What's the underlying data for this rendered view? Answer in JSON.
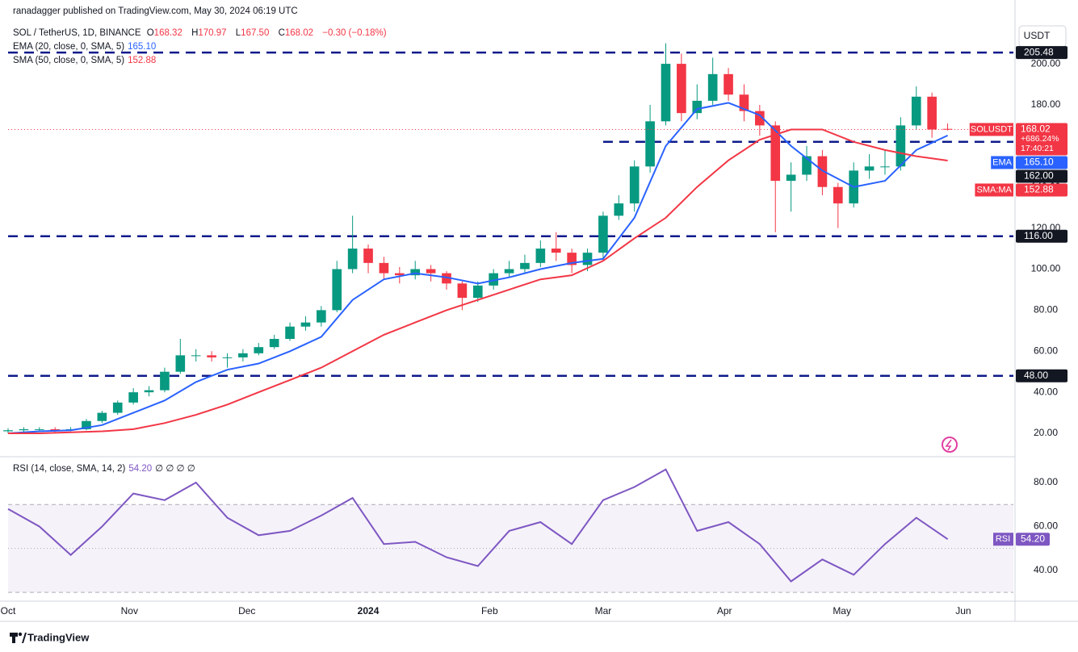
{
  "header": {
    "publisher": "ranadagger published on TradingView.com, May 30, 2024 06:19 UTC",
    "symbol": "SOL / TetherUS, 1D, BINANCE",
    "ohlc": [
      {
        "k": "O",
        "v": "168.32"
      },
      {
        "k": "H",
        "v": "170.97"
      },
      {
        "k": "L",
        "v": "167.50"
      },
      {
        "k": "C",
        "v": "168.02"
      }
    ],
    "change": "−0.30 (−0.18%)",
    "ema_label": "EMA (20, close, 0, SMA, 5)",
    "ema_value": "165.10",
    "sma_label": "SMA (50, close, 0, SMA, 5)",
    "sma_value": "152.88",
    "currency": "USDT"
  },
  "chart_data": [
    {
      "type": "candlestick",
      "xlim": [
        0,
        64.2
      ],
      "xticks": [
        {
          "value": 0,
          "label": "Oct"
        },
        {
          "value": 7.75,
          "label": "Nov"
        },
        {
          "value": 15.25,
          "label": "Dec"
        },
        {
          "value": 23,
          "label": "2024"
        },
        {
          "value": 30.75,
          "label": "Feb"
        },
        {
          "value": 38,
          "label": "Mar"
        },
        {
          "value": 45.75,
          "label": "Apr"
        },
        {
          "value": 53.25,
          "label": "May"
        },
        {
          "value": 61,
          "label": "Jun"
        }
      ],
      "ylim": [
        9,
        219.3
      ],
      "yticks": [
        {
          "value": 20,
          "label": "20.00"
        },
        {
          "value": 40,
          "label": "40.00"
        },
        {
          "value": 60,
          "label": "60.00"
        },
        {
          "value": 80,
          "label": "80.00"
        },
        {
          "value": 100,
          "label": "100.00"
        },
        {
          "value": 120,
          "label": "120.00"
        },
        {
          "value": 140,
          "label": "140.00"
        },
        {
          "value": 160,
          "label": "160.00"
        },
        {
          "value": 180,
          "label": "180.00"
        },
        {
          "value": 200,
          "label": "200.00"
        }
      ],
      "up_color": "#089981",
      "down_color": "#f23645",
      "open": [
        21,
        21.5,
        22,
        22,
        21.5,
        22,
        26,
        30,
        35,
        40,
        41,
        50,
        58,
        58,
        57,
        57,
        59,
        62,
        66,
        72,
        74,
        80,
        100,
        110,
        103,
        98,
        97,
        100,
        98,
        93,
        86,
        92,
        98,
        100,
        103,
        110,
        108,
        102,
        108,
        126,
        132,
        150,
        172,
        200,
        176,
        182,
        195,
        185,
        177,
        170,
        143,
        146,
        155,
        140,
        132,
        148,
        150,
        150,
        170,
        184,
        168.32
      ],
      "high": [
        22.5,
        23,
        23,
        23,
        23,
        27,
        31,
        36,
        42,
        43,
        52,
        66,
        61,
        60,
        59,
        61,
        64,
        68,
        74,
        77,
        82,
        104,
        126,
        112,
        106,
        101,
        104,
        102,
        99,
        94,
        94,
        100,
        104,
        107,
        114,
        118,
        110,
        110,
        128,
        136,
        153,
        180,
        210,
        205,
        190,
        203,
        198,
        190,
        180,
        172,
        152,
        160,
        158,
        142,
        152,
        156,
        158,
        174,
        189,
        186,
        170.97
      ],
      "low": [
        20,
        20.5,
        21,
        20.5,
        21,
        21.5,
        25,
        29,
        34,
        38,
        40,
        49,
        55,
        55,
        52,
        55,
        58,
        61,
        65,
        70,
        72,
        79,
        98,
        98,
        95,
        93,
        95,
        94,
        90,
        80,
        84,
        90,
        96,
        98,
        101,
        104,
        98,
        99,
        104,
        124,
        128,
        147,
        170,
        172,
        173,
        180,
        182,
        172,
        165,
        118,
        128,
        143,
        136,
        120,
        130,
        144,
        146,
        148,
        168,
        164,
        167.5
      ],
      "close": [
        21.5,
        22,
        22,
        21.5,
        22,
        26,
        30,
        35,
        40,
        41,
        50,
        58,
        58,
        57,
        57,
        59,
        62,
        66,
        72,
        74,
        80,
        100,
        110,
        103,
        98,
        97,
        100,
        98,
        93,
        86,
        92,
        98,
        100,
        103,
        110,
        108,
        102,
        108,
        126,
        132,
        150,
        172,
        200,
        176,
        182,
        195,
        185,
        177,
        170,
        143,
        146,
        155,
        140,
        132,
        148,
        150,
        150,
        170,
        184,
        168,
        168.02
      ],
      "last": {
        "name": "SOLUSDT",
        "value": "168.02",
        "change": "+686.24%",
        "countdown": "17:40:21"
      },
      "series": [
        {
          "name": "EMA",
          "color": "#2962ff",
          "badge": "165.10",
          "x": [
            0,
            2,
            4,
            6,
            8,
            10,
            12,
            14,
            16,
            18,
            20,
            22,
            24,
            26,
            28,
            30,
            32,
            34,
            36,
            38,
            40,
            42,
            44,
            46,
            48,
            50,
            52,
            54,
            56,
            58,
            60
          ],
          "values": [
            20,
            21,
            21.5,
            24,
            30,
            36,
            45,
            51,
            54,
            60,
            67,
            85,
            95,
            98,
            96,
            93,
            96,
            100,
            103,
            105,
            125,
            160,
            178,
            181,
            175,
            160,
            148,
            140,
            143,
            158,
            165.1
          ]
        },
        {
          "name": "SMA:MA",
          "color": "#f23645",
          "badge": "152.88",
          "x": [
            0,
            2,
            4,
            6,
            8,
            10,
            12,
            14,
            16,
            18,
            20,
            22,
            24,
            26,
            28,
            30,
            32,
            34,
            36,
            38,
            40,
            42,
            44,
            46,
            48,
            50,
            52,
            54,
            56,
            58,
            60
          ],
          "values": [
            20,
            20,
            20.5,
            21,
            22,
            25,
            29,
            34,
            40,
            46,
            52,
            60,
            68,
            74,
            80,
            85,
            90,
            95,
            97,
            104,
            115,
            125,
            140,
            153,
            163,
            168,
            168,
            162,
            158,
            155,
            152.88
          ]
        }
      ],
      "level_color": "#2962ff",
      "levels": [
        {
          "value": 205.48,
          "label": "205.48"
        },
        {
          "value": 162,
          "label": "162.00",
          "start": 38
        },
        {
          "value": 116,
          "label": "116.00"
        },
        {
          "value": 48,
          "label": "48.00"
        }
      ]
    },
    {
      "type": "line",
      "title": "RSI (14, close, SMA, 14, 2)",
      "value_text": "54.20",
      "extra": "∅ ∅ ∅ ∅",
      "xlim": [
        0,
        64.2
      ],
      "ylim": [
        26,
        91.4
      ],
      "yticks": [
        {
          "value": 40,
          "label": "40.00"
        },
        {
          "value": 60,
          "label": "60.00"
        },
        {
          "value": 80,
          "label": "80.00"
        }
      ],
      "bands": [
        70,
        50,
        30
      ],
      "band_fill": "#7e57c2",
      "series": [
        {
          "name": "RSI",
          "color": "#7e57c2",
          "badge": "54.20",
          "x": [
            0,
            2,
            4,
            6,
            8,
            10,
            12,
            14,
            16,
            18,
            20,
            22,
            24,
            26,
            28,
            30,
            32,
            34,
            36,
            38,
            40,
            42,
            44,
            46,
            48,
            50,
            52,
            54,
            56,
            58,
            60
          ],
          "values": [
            68,
            60,
            47,
            60,
            75,
            72,
            80,
            64,
            56,
            58,
            65,
            73,
            52,
            53,
            46,
            42,
            58,
            62,
            52,
            72,
            78,
            86,
            58,
            62,
            52,
            35,
            45,
            38,
            52,
            64,
            54.2
          ]
        }
      ]
    }
  ],
  "footer": {
    "brand": "TradingView"
  }
}
